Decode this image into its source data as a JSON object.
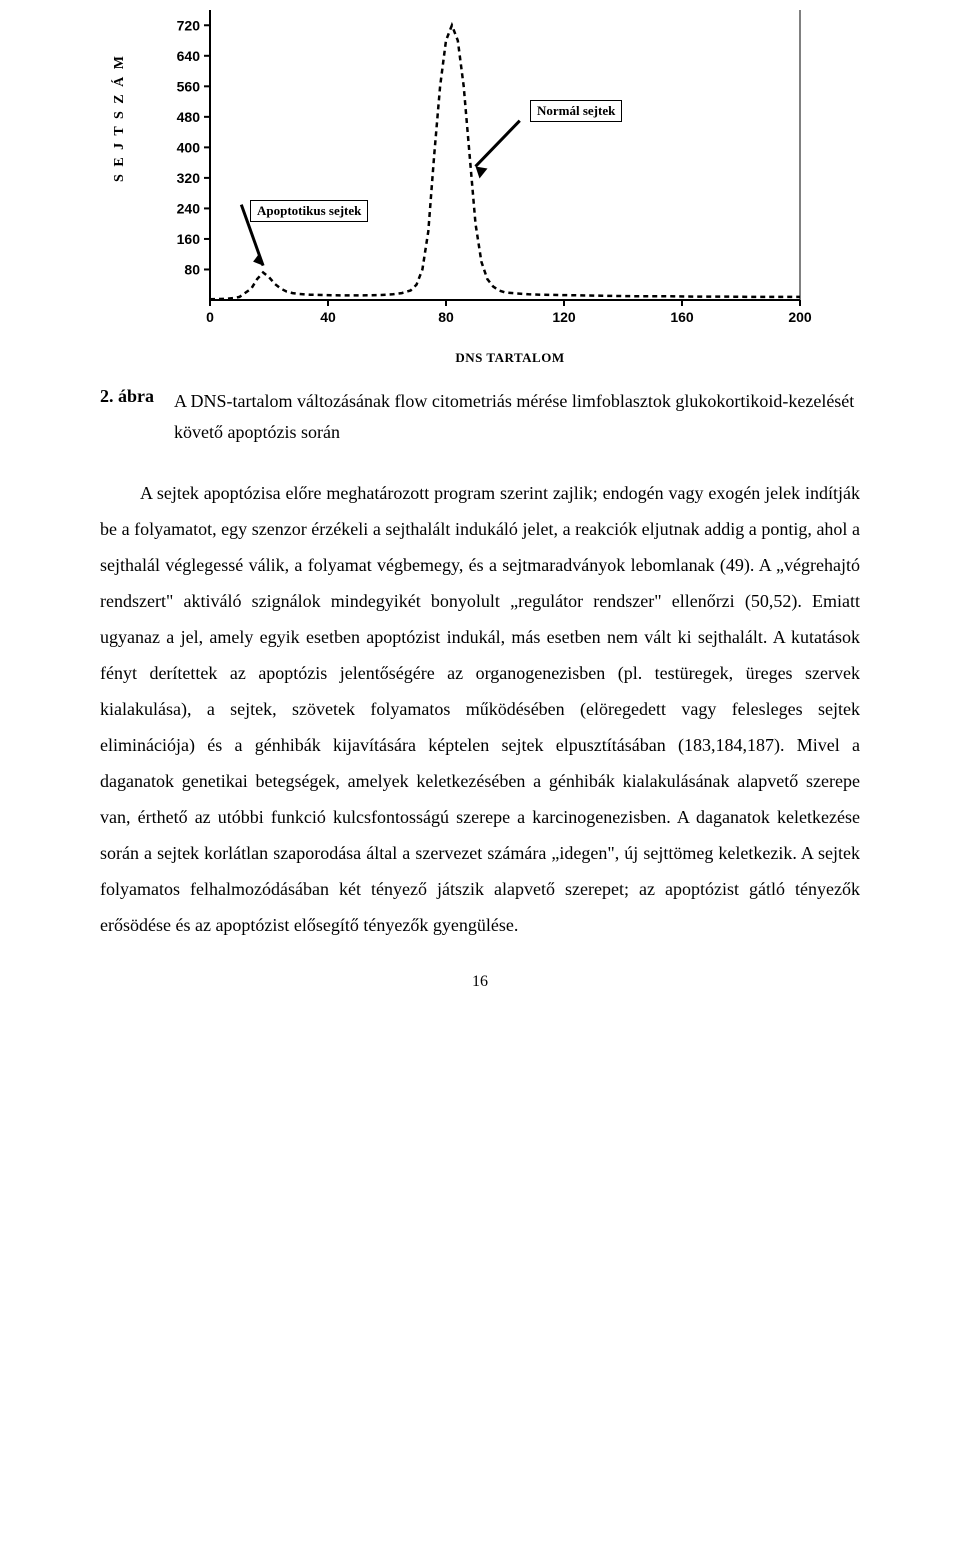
{
  "chart": {
    "type": "histogram-line",
    "y_axis_label": "S E J T S Z Á M",
    "x_axis_label": "DNS TARTALOM",
    "annotation_apoptotic": "Apoptotikus sejtek",
    "annotation_normal": "Normál sejtek",
    "xlim": [
      0,
      200
    ],
    "ylim": [
      0,
      760
    ],
    "x_ticks": [
      0,
      40,
      80,
      120,
      160,
      200
    ],
    "y_ticks": [
      80,
      160,
      240,
      320,
      400,
      480,
      560,
      640,
      720
    ],
    "tick_fontsize": 14,
    "tick_fontweight": "bold",
    "line_color": "#000000",
    "line_width": 2.5,
    "dash_pattern": "5 4",
    "background_color": "#ffffff",
    "axis_color": "#000000",
    "axis_width": 2,
    "arrow_color": "#000000",
    "annot_box_border": "#000000",
    "data_points": [
      [
        0,
        2
      ],
      [
        5,
        3
      ],
      [
        8,
        5
      ],
      [
        10,
        8
      ],
      [
        14,
        30
      ],
      [
        16,
        55
      ],
      [
        18,
        72
      ],
      [
        20,
        60
      ],
      [
        22,
        42
      ],
      [
        24,
        30
      ],
      [
        26,
        22
      ],
      [
        28,
        18
      ],
      [
        30,
        16
      ],
      [
        34,
        14
      ],
      [
        38,
        13
      ],
      [
        44,
        12
      ],
      [
        52,
        12
      ],
      [
        58,
        13
      ],
      [
        62,
        15
      ],
      [
        65,
        18
      ],
      [
        68,
        25
      ],
      [
        70,
        40
      ],
      [
        72,
        80
      ],
      [
        74,
        180
      ],
      [
        76,
        380
      ],
      [
        78,
        560
      ],
      [
        80,
        680
      ],
      [
        82,
        720
      ],
      [
        84,
        680
      ],
      [
        86,
        560
      ],
      [
        88,
        380
      ],
      [
        90,
        200
      ],
      [
        92,
        100
      ],
      [
        94,
        55
      ],
      [
        96,
        35
      ],
      [
        98,
        25
      ],
      [
        100,
        20
      ],
      [
        104,
        17
      ],
      [
        108,
        15
      ],
      [
        112,
        14
      ],
      [
        118,
        13
      ],
      [
        126,
        12
      ],
      [
        134,
        11
      ],
      [
        144,
        10
      ],
      [
        154,
        10
      ],
      [
        164,
        9
      ],
      [
        174,
        9
      ],
      [
        184,
        8
      ],
      [
        194,
        8
      ],
      [
        200,
        8
      ]
    ]
  },
  "figure": {
    "number": "2. ábra",
    "caption": "A DNS-tartalom változásának flow citometriás mérése limfoblasztok glukokortikoid-kezelését követő apoptózis során"
  },
  "paragraph": "A sejtek apoptózisa előre meghatározott program szerint zajlik; endogén vagy exogén jelek indítják be a folyamatot, egy szenzor érzékeli a sejthalált indukáló jelet, a reakciók eljutnak addig a pontig, ahol a sejthalál véglegessé válik, a folyamat végbemegy, és a sejtmaradványok lebomlanak (49). A „végrehajtó rendszert\" aktiváló szignálok mindegyikét bonyolult „regulátor rendszer\" ellenőrzi (50,52). Emiatt ugyanaz a jel, amely egyik esetben apoptózist indukál, más esetben nem vált ki sejthalált. A kutatások fényt derítettek az apoptózis jelentőségére az organogenezisben (pl. testüregek, üreges szervek kialakulása), a sejtek, szövetek folyamatos működésében (elöregedett vagy felesleges sejtek eliminációja) és a génhibák kijavítására képtelen sejtek elpusztításában (183,184,187). Mivel a daganatok genetikai betegségek, amelyek keletkezésében a génhibák kialakulásának alapvető szerepe van, érthető az utóbbi funkció kulcsfontosságú szerepe a karcinogenezisben. A daganatok keletkezése során a sejtek korlátlan szaporodása által a szervezet számára „idegen\", új sejttömeg keletkezik. A sejtek folyamatos felhalmozódásában két tényező játszik alapvető szerepet; az apoptózist gátló tényezők erősödése és az apoptózist elősegítő tényezők gyengülése.",
  "page_number": "16"
}
